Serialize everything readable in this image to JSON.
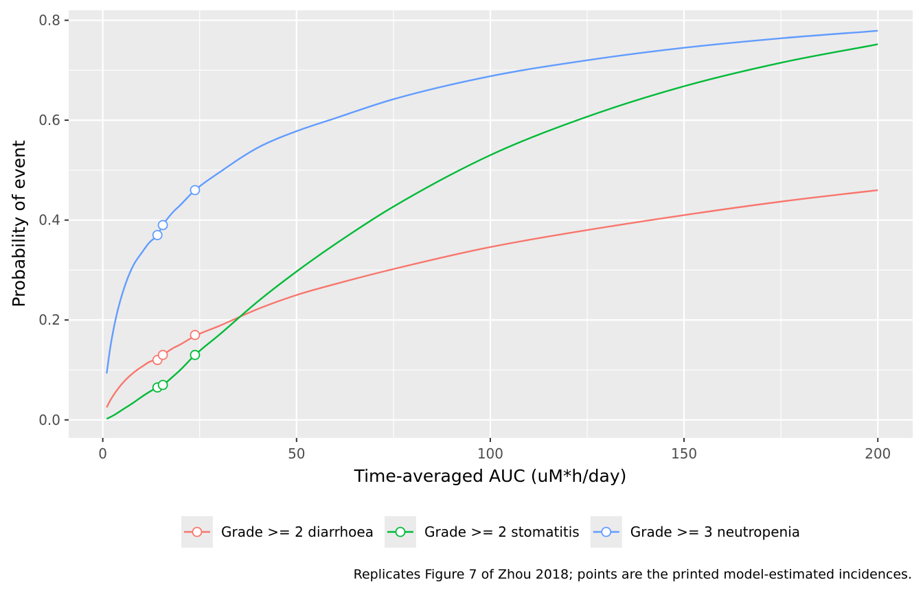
{
  "chart_data": {
    "type": "line",
    "xlabel": "Time-averaged AUC (uM*h/day)",
    "ylabel": "Probability of event",
    "caption": "Replicates Figure 7 of Zhou 2018; points are the printed model-estimated incidences.",
    "xlim": [
      -8.8,
      209
    ],
    "ylim": [
      -0.036,
      0.82
    ],
    "xticks": [
      0,
      50,
      100,
      150,
      200
    ],
    "xtick_labels": [
      "0",
      "50",
      "100",
      "150",
      "200"
    ],
    "yticks": [
      0.0,
      0.2,
      0.4,
      0.6,
      0.8
    ],
    "ytick_labels": [
      "0.0",
      "0.2",
      "0.4",
      "0.6",
      "0.8"
    ],
    "grid": true,
    "legend_position": "bottom",
    "colors": {
      "panel_background": "#ebebeb",
      "grid": "#ffffff"
    },
    "series": [
      {
        "name": "Grade >= 2 diarrhoea",
        "color": "#f8766d",
        "line": {
          "x": [
            1,
            2,
            4,
            6,
            8,
            10,
            12,
            14.1,
            15.5,
            18,
            20,
            24,
            30,
            40,
            50,
            60,
            75,
            100,
            125,
            150,
            175,
            200
          ],
          "y": [
            0.025,
            0.04,
            0.063,
            0.081,
            0.095,
            0.106,
            0.116,
            0.122,
            0.13,
            0.143,
            0.151,
            0.169,
            0.188,
            0.222,
            0.25,
            0.272,
            0.302,
            0.346,
            0.38,
            0.41,
            0.437,
            0.46
          ]
        },
        "points": {
          "x": [
            14.1,
            15.5,
            23.8
          ],
          "y": [
            0.12,
            0.13,
            0.17
          ]
        }
      },
      {
        "name": "Grade >= 2 stomatitis",
        "color": "#00ba38",
        "line": {
          "x": [
            1,
            3,
            5,
            8,
            10,
            12,
            14.1,
            15.5,
            18,
            20,
            23.8,
            30,
            40,
            50,
            60,
            75,
            100,
            125,
            150,
            175,
            200
          ],
          "y": [
            0.002,
            0.01,
            0.02,
            0.035,
            0.046,
            0.056,
            0.065,
            0.07,
            0.086,
            0.1,
            0.13,
            0.17,
            0.237,
            0.297,
            0.352,
            0.427,
            0.53,
            0.607,
            0.668,
            0.715,
            0.752
          ]
        },
        "points": {
          "x": [
            14.1,
            15.5,
            23.8
          ],
          "y": [
            0.065,
            0.07,
            0.13
          ]
        }
      },
      {
        "name": "Grade >= 3 neutropenia",
        "color": "#619cff",
        "line": {
          "x": [
            1,
            2,
            3,
            4,
            6,
            8,
            10,
            12,
            14.1,
            15.5,
            18,
            20,
            23.8,
            30,
            40,
            50,
            60,
            75,
            100,
            125,
            150,
            175,
            200
          ],
          "y": [
            0.093,
            0.148,
            0.19,
            0.224,
            0.275,
            0.311,
            0.334,
            0.355,
            0.37,
            0.39,
            0.415,
            0.43,
            0.46,
            0.495,
            0.545,
            0.578,
            0.604,
            0.642,
            0.688,
            0.72,
            0.745,
            0.764,
            0.779
          ]
        },
        "points": {
          "x": [
            14.1,
            15.5,
            23.8
          ],
          "y": [
            0.37,
            0.39,
            0.46
          ]
        }
      }
    ]
  }
}
